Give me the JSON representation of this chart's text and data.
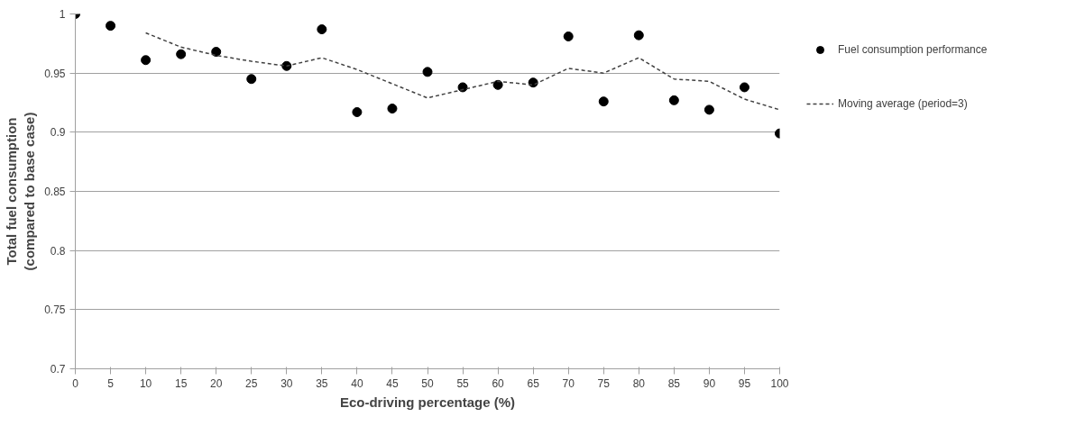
{
  "chart_data": {
    "type": "scatter",
    "xlabel": "Eco-driving percentage (%)",
    "ylabel": "Total fuel consumption\n(compared to base case)",
    "xlim": [
      0,
      100
    ],
    "xticks": [
      0,
      5,
      10,
      15,
      20,
      25,
      30,
      35,
      40,
      45,
      50,
      55,
      60,
      65,
      70,
      75,
      80,
      85,
      90,
      95,
      100
    ],
    "ylim": [
      0.7,
      1
    ],
    "yticks": [
      0.7,
      0.75,
      0.8,
      0.85,
      0.9,
      0.95,
      1
    ],
    "grid": "y",
    "legend": "right",
    "series": [
      {
        "name": "Fuel consumption performance",
        "marker": "circle",
        "color": "#000000",
        "x": [
          0,
          5,
          10,
          15,
          20,
          25,
          30,
          35,
          40,
          45,
          50,
          55,
          60,
          65,
          70,
          75,
          80,
          85,
          90,
          95,
          100
        ],
        "values": [
          1.0,
          0.99,
          0.961,
          0.966,
          0.968,
          0.945,
          0.956,
          0.987,
          0.917,
          0.92,
          0.951,
          0.938,
          0.94,
          0.942,
          0.981,
          0.926,
          0.982,
          0.927,
          0.919,
          0.938,
          0.899
        ]
      },
      {
        "name": "Moving average (period=3)",
        "type": "line",
        "line_style": "dashed",
        "color": "#404040",
        "x": [
          10,
          15,
          20,
          25,
          30,
          35,
          40,
          45,
          50,
          55,
          60,
          65,
          70,
          75,
          80,
          85,
          90,
          95,
          100
        ],
        "values": [
          0.984,
          0.972,
          0.965,
          0.96,
          0.956,
          0.963,
          0.953,
          0.941,
          0.929,
          0.936,
          0.943,
          0.94,
          0.954,
          0.95,
          0.963,
          0.945,
          0.943,
          0.928,
          0.919
        ]
      }
    ]
  }
}
